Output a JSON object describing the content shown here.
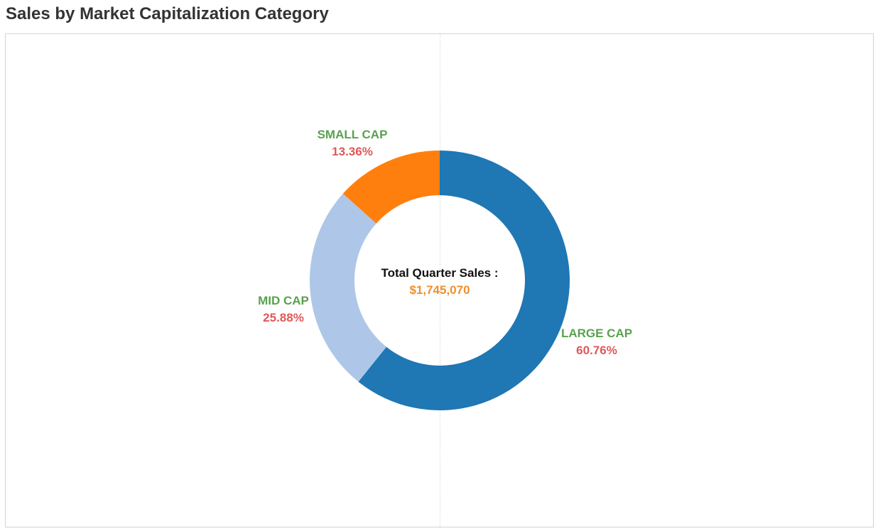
{
  "title": "Sales by Market Capitalization Category",
  "center": {
    "label": "Total Quarter Sales :",
    "value": "$1,745,070"
  },
  "colors": {
    "category_label": "#59a14f",
    "percent_label": "#e15759",
    "center_value": "#f28e2b",
    "title": "#333333"
  },
  "chart_data": {
    "type": "pie",
    "subtype": "donut",
    "total_label": "Total Quarter Sales :",
    "total_value": "$1,745,070",
    "slices": [
      {
        "name": "LARGE CAP",
        "percent": 60.76,
        "percent_label": "60.76%",
        "color": "#1f77b4"
      },
      {
        "name": "MID CAP",
        "percent": 25.88,
        "percent_label": "25.88%",
        "color": "#aec7e8"
      },
      {
        "name": "SMALL CAP",
        "percent": 13.36,
        "percent_label": "13.36%",
        "color": "#ff7f0e"
      }
    ],
    "start": "12 o'clock, clockwise"
  }
}
